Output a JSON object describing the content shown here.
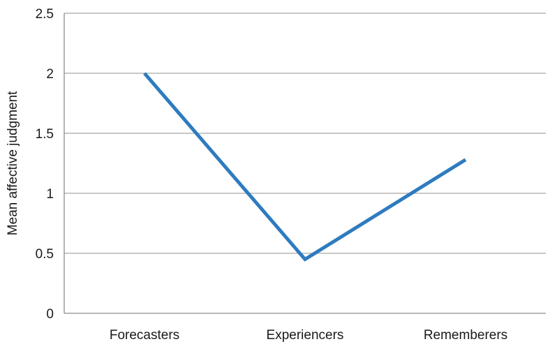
{
  "colors": {
    "series": "#2e7bbf",
    "grid": "#a6a6a6",
    "axis": "#8c8c8c",
    "text": "#1a1a1a"
  },
  "chart_data": {
    "type": "line",
    "title": "",
    "xlabel": "",
    "ylabel": "Mean affective judgment",
    "ylim": [
      0,
      2.5
    ],
    "yticks": [
      0,
      0.5,
      1,
      1.5,
      2,
      2.5
    ],
    "ytick_labels": [
      "0",
      "0.5",
      "1",
      "1.5",
      "2",
      "2.5"
    ],
    "categories": [
      "Forecasters",
      "Experiencers",
      "Rememberers"
    ],
    "grid": true,
    "legend": "none",
    "series": [
      {
        "values": [
          2.0,
          0.45,
          1.28
        ]
      }
    ]
  }
}
